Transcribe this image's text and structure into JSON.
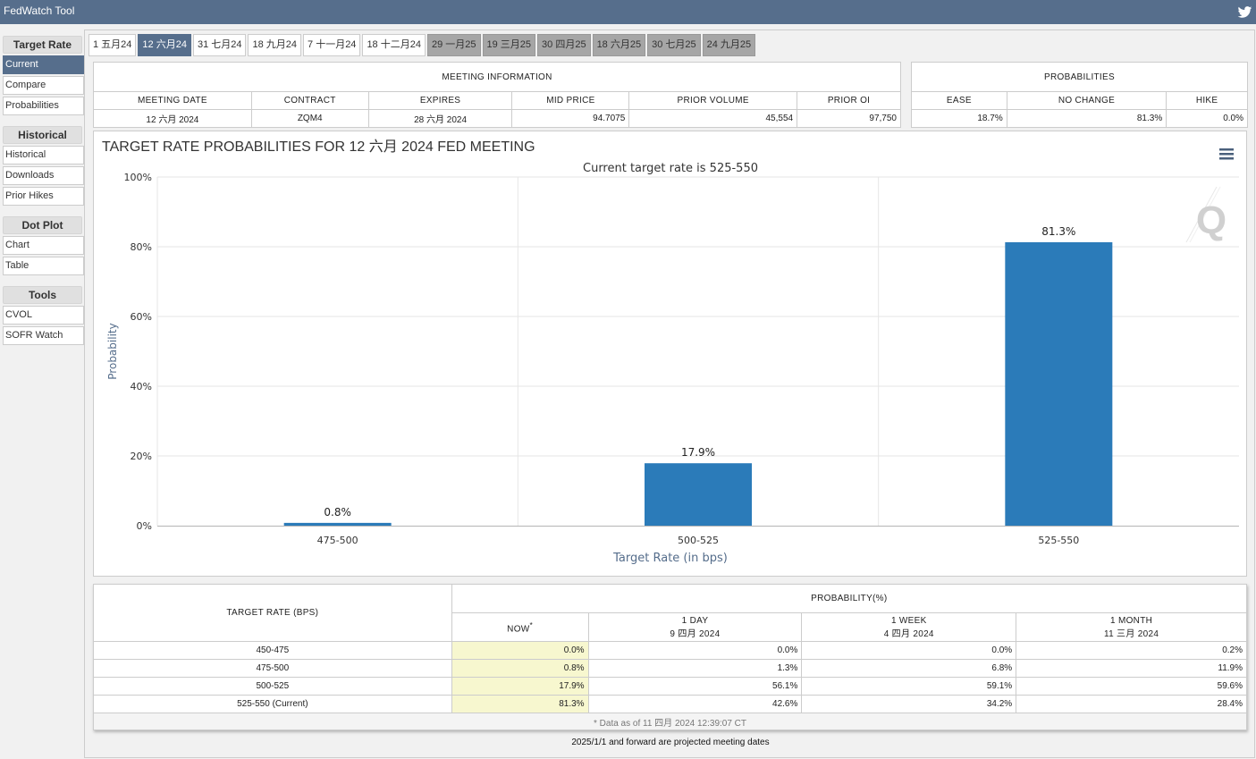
{
  "app": {
    "title": "FedWatch Tool",
    "twitter_icon": "twitter-icon"
  },
  "sidebar": {
    "groups": [
      {
        "heading": "Target Rate",
        "items": [
          "Current",
          "Compare",
          "Probabilities"
        ]
      },
      {
        "heading": "Historical",
        "items": [
          "Historical",
          "Downloads",
          "Prior Hikes"
        ]
      },
      {
        "heading": "Dot Plot",
        "items": [
          "Chart",
          "Table"
        ]
      },
      {
        "heading": "Tools",
        "items": [
          "CVOL",
          "SOFR Watch"
        ]
      }
    ],
    "active_item": "Current"
  },
  "tabs": [
    {
      "label": "1 五月24",
      "state": "normal"
    },
    {
      "label": "12 六月24",
      "state": "active"
    },
    {
      "label": "31 七月24",
      "state": "normal"
    },
    {
      "label": "18 九月24",
      "state": "normal"
    },
    {
      "label": "7 十一月24",
      "state": "normal"
    },
    {
      "label": "18 十二月24",
      "state": "normal"
    },
    {
      "label": "29 一月25",
      "state": "future"
    },
    {
      "label": "19 三月25",
      "state": "future"
    },
    {
      "label": "30 四月25",
      "state": "future"
    },
    {
      "label": "18 六月25",
      "state": "future"
    },
    {
      "label": "30 七月25",
      "state": "future"
    },
    {
      "label": "24 九月25",
      "state": "future"
    }
  ],
  "meeting_info": {
    "caption": "MEETING INFORMATION",
    "headers": [
      "MEETING DATE",
      "CONTRACT",
      "EXPIRES",
      "MID PRICE",
      "PRIOR VOLUME",
      "PRIOR OI"
    ],
    "values": [
      "12 六月 2024",
      "ZQM4",
      "28 六月 2024",
      "94.7075",
      "45,554",
      "97,750"
    ]
  },
  "probabilities": {
    "caption": "PROBABILITIES",
    "headers": [
      "EASE",
      "NO CHANGE",
      "HIKE"
    ],
    "values": [
      "18.7%",
      "81.3%",
      "0.0%"
    ]
  },
  "chart": {
    "menu_icon": "hamburger-menu-icon",
    "watermark": "Q",
    "bar_color": "#2b7bb9"
  },
  "chart_data": {
    "type": "bar",
    "title": "TARGET RATE PROBABILITIES FOR 12 六月 2024 FED MEETING",
    "subtitle": "Current target rate is 525-550",
    "xlabel": "Target Rate (in bps)",
    "ylabel": "Probability",
    "categories": [
      "475-500",
      "500-525",
      "525-550"
    ],
    "values": [
      0.8,
      17.9,
      81.3
    ],
    "value_labels": [
      "0.8%",
      "17.9%",
      "81.3%"
    ],
    "ylim": [
      0,
      100
    ],
    "yticks": [
      "0%",
      "20%",
      "40%",
      "60%",
      "80%",
      "100%"
    ],
    "grid": true,
    "legend": "none"
  },
  "prob_table": {
    "first_header": "TARGET RATE (BPS)",
    "group_header": "PROBABILITY(%)",
    "columns": [
      {
        "line1": "NOW",
        "line2": "",
        "marker": "*"
      },
      {
        "line1": "1 DAY",
        "line2": "9 四月 2024"
      },
      {
        "line1": "1 WEEK",
        "line2": "4 四月 2024"
      },
      {
        "line1": "1 MONTH",
        "line2": "11 三月 2024"
      }
    ],
    "rows": [
      {
        "rate": "450-475",
        "values": [
          "0.0%",
          "0.0%",
          "0.0%",
          "0.2%"
        ]
      },
      {
        "rate": "475-500",
        "values": [
          "0.8%",
          "1.3%",
          "6.8%",
          "11.9%"
        ]
      },
      {
        "rate": "500-525",
        "values": [
          "17.9%",
          "56.1%",
          "59.1%",
          "59.6%"
        ]
      },
      {
        "rate": "525-550 (Current)",
        "values": [
          "81.3%",
          "42.6%",
          "34.2%",
          "28.4%"
        ]
      }
    ],
    "note": "* Data as of 11 四月 2024 12:39:07 CT"
  },
  "footer": "2025/1/1 and forward are projected meeting dates"
}
